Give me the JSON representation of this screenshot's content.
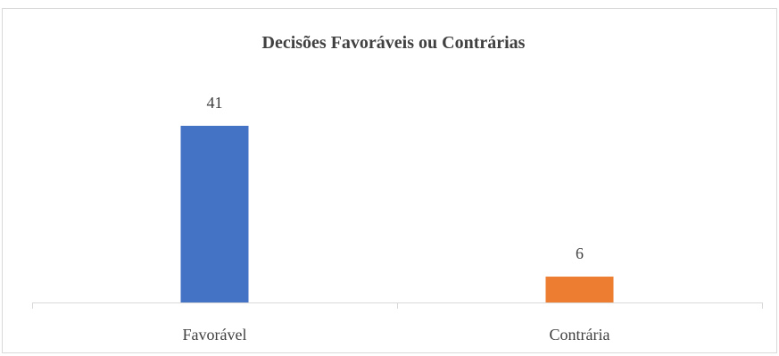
{
  "chart_data": {
    "type": "bar",
    "title": "Decisões Favoráveis ou Contrárias",
    "xlabel": "",
    "ylabel": "",
    "categories": [
      "Favorável",
      "Contrária"
    ],
    "values": [
      41,
      6
    ],
    "colors": [
      "#4472c4",
      "#ed7d31"
    ],
    "ylim": [
      0,
      47
    ],
    "grid": false,
    "legend": "none",
    "data_labels": true
  }
}
